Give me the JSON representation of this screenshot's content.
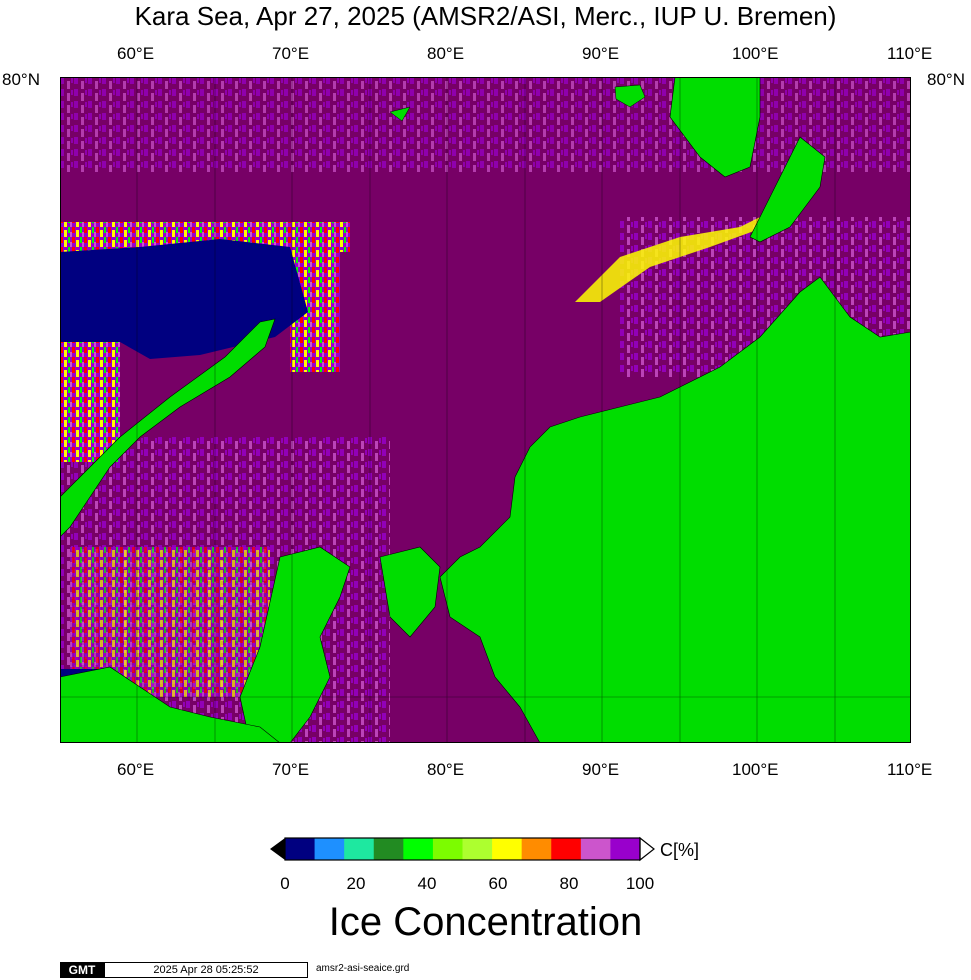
{
  "title": "Kara Sea, Apr 27, 2025 (AMSR2/ASI, Merc., IUP U. Bremen)",
  "map": {
    "lon_labels_top": [
      "60°E",
      "70°E",
      "80°E",
      "90°E",
      "100°E",
      "110°E"
    ],
    "lon_labels_bottom": [
      "60°E",
      "70°E",
      "80°E",
      "90°E",
      "100°E",
      "110°E"
    ],
    "lat_label_left": "80°N",
    "lat_label_right": "80°N",
    "colors": {
      "land": "#00dd00",
      "ice_100": "#770066",
      "ice_95": "#9900cc",
      "ice_90": "#cc55cc",
      "ice_85": "#ff0000",
      "ice_60": "#ffff00",
      "open_water": "#000080"
    }
  },
  "colorbar": {
    "colors": [
      "#000080",
      "#1e90ff",
      "#1ee8a0",
      "#228b22",
      "#00ff00",
      "#7cfc00",
      "#adff2f",
      "#ffff00",
      "#ff8c00",
      "#ff0000",
      "#cc55cc",
      "#9900cc"
    ],
    "labels": [
      "0",
      "20",
      "40",
      "60",
      "80",
      "100"
    ],
    "unit": "C[%]",
    "title": "Ice Concentration"
  },
  "footer": {
    "logo": "GMT",
    "timestamp": "2025 Apr 28 05:25:52",
    "filename": "amsr2-asi-seaice.grd"
  }
}
